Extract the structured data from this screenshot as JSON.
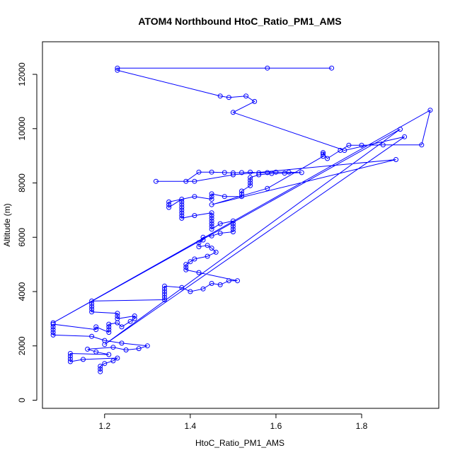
{
  "chart_data": {
    "type": "scatter",
    "title": "ATOM4 Northbound HtoC_Ratio_PM1_AMS",
    "xlabel": "HtoC_Ratio_PM1_AMS",
    "ylabel": "Altitude (m)",
    "xlim": [
      1.055,
      1.98
    ],
    "ylim": [
      -300,
      13200
    ],
    "xticks": [
      1.2,
      1.4,
      1.6,
      1.8
    ],
    "xtick_labels": [
      "1.2",
      "1.4",
      "1.6",
      "1.8"
    ],
    "yticks": [
      0,
      2000,
      4000,
      6000,
      8000,
      10000,
      12000
    ],
    "ytick_labels": [
      "0",
      "2000",
      "4000",
      "6000",
      "8000",
      "10000",
      "12000"
    ],
    "grid": false,
    "color": "#0000ff",
    "series": [
      {
        "name": "HtoC_Ratio_PM1_AMS",
        "mode": "lines+markers",
        "points": [
          [
            1.19,
            1050
          ],
          [
            1.19,
            1150
          ],
          [
            1.19,
            1250
          ],
          [
            1.2,
            1350
          ],
          [
            1.22,
            1450
          ],
          [
            1.23,
            1550
          ],
          [
            1.15,
            1500
          ],
          [
            1.12,
            1420
          ],
          [
            1.12,
            1520
          ],
          [
            1.12,
            1620
          ],
          [
            1.12,
            1720
          ],
          [
            1.21,
            1680
          ],
          [
            1.18,
            1780
          ],
          [
            1.16,
            1880
          ],
          [
            1.22,
            1950
          ],
          [
            1.25,
            1850
          ],
          [
            1.28,
            1900
          ],
          [
            1.3,
            2000
          ],
          [
            1.24,
            2100
          ],
          [
            1.2,
            2200
          ],
          [
            1.17,
            2350
          ],
          [
            1.08,
            2400
          ],
          [
            1.08,
            2500
          ],
          [
            1.08,
            2600
          ],
          [
            1.08,
            2700
          ],
          [
            1.08,
            2800
          ],
          [
            1.18,
            2600
          ],
          [
            1.18,
            2700
          ],
          [
            1.21,
            2500
          ],
          [
            1.21,
            2600
          ],
          [
            1.21,
            2700
          ],
          [
            1.21,
            2800
          ],
          [
            1.23,
            2850
          ],
          [
            1.24,
            2700
          ],
          [
            1.26,
            2900
          ],
          [
            1.27,
            3000
          ],
          [
            1.27,
            3100
          ],
          [
            1.23,
            3000
          ],
          [
            1.23,
            3100
          ],
          [
            1.23,
            3200
          ],
          [
            1.17,
            3250
          ],
          [
            1.17,
            3350
          ],
          [
            1.17,
            3450
          ],
          [
            1.17,
            3550
          ],
          [
            1.17,
            3650
          ],
          [
            1.34,
            3700
          ],
          [
            1.34,
            3800
          ],
          [
            1.34,
            3900
          ],
          [
            1.34,
            4000
          ],
          [
            1.34,
            4100
          ],
          [
            1.34,
            4200
          ],
          [
            1.38,
            4150
          ],
          [
            1.4,
            4000
          ],
          [
            1.43,
            4100
          ],
          [
            1.45,
            4300
          ],
          [
            1.47,
            4250
          ],
          [
            1.49,
            4400
          ],
          [
            1.51,
            4400
          ],
          [
            1.42,
            4700
          ],
          [
            1.39,
            4800
          ],
          [
            1.39,
            4900
          ],
          [
            1.39,
            5000
          ],
          [
            1.4,
            5100
          ],
          [
            1.41,
            5200
          ],
          [
            1.44,
            5300
          ],
          [
            1.46,
            5450
          ],
          [
            1.45,
            5600
          ],
          [
            1.44,
            5700
          ],
          [
            1.42,
            5650
          ],
          [
            1.42,
            5800
          ],
          [
            1.43,
            5900
          ],
          [
            1.43,
            6000
          ],
          [
            1.45,
            6050
          ],
          [
            1.47,
            6150
          ],
          [
            1.5,
            6200
          ],
          [
            1.5,
            6300
          ],
          [
            1.5,
            6400
          ],
          [
            1.5,
            6500
          ],
          [
            1.5,
            6600
          ],
          [
            1.47,
            6500
          ],
          [
            1.45,
            6300
          ],
          [
            1.45,
            6400
          ],
          [
            1.45,
            6500
          ],
          [
            1.45,
            6600
          ],
          [
            1.45,
            6700
          ],
          [
            1.45,
            6800
          ],
          [
            1.45,
            6900
          ],
          [
            1.41,
            6800
          ],
          [
            1.38,
            6700
          ],
          [
            1.38,
            6800
          ],
          [
            1.38,
            6900
          ],
          [
            1.38,
            7000
          ],
          [
            1.38,
            7100
          ],
          [
            1.38,
            7200
          ],
          [
            1.38,
            7300
          ],
          [
            1.38,
            7400
          ],
          [
            1.35,
            7100
          ],
          [
            1.35,
            7200
          ],
          [
            1.35,
            7300
          ],
          [
            1.41,
            7500
          ],
          [
            1.45,
            7400
          ],
          [
            1.45,
            7500
          ],
          [
            1.45,
            7600
          ],
          [
            1.48,
            7500
          ],
          [
            1.52,
            7500
          ],
          [
            1.52,
            7600
          ],
          [
            1.52,
            7700
          ],
          [
            1.54,
            7900
          ],
          [
            1.54,
            8000
          ],
          [
            1.54,
            8100
          ],
          [
            1.54,
            8200
          ],
          [
            1.56,
            8300
          ],
          [
            1.59,
            8350
          ],
          [
            1.62,
            8360
          ],
          [
            1.66,
            8380
          ],
          [
            1.63,
            8400
          ],
          [
            1.6,
            8400
          ],
          [
            1.58,
            8380
          ],
          [
            1.56,
            8370
          ],
          [
            1.54,
            8400
          ],
          [
            1.52,
            8380
          ],
          [
            1.5,
            8370
          ],
          [
            1.48,
            8380
          ],
          [
            1.45,
            8400
          ],
          [
            1.42,
            8400
          ],
          [
            1.39,
            8060
          ],
          [
            1.32,
            8060
          ],
          [
            1.41,
            8060
          ],
          [
            1.5,
            8300
          ],
          [
            1.88,
            8860
          ],
          [
            1.45,
            7200
          ],
          [
            1.58,
            7800
          ],
          [
            1.71,
            8980
          ],
          [
            1.71,
            9060
          ],
          [
            1.71,
            9120
          ],
          [
            1.72,
            8900
          ],
          [
            1.75,
            9200
          ],
          [
            1.77,
            9390
          ],
          [
            1.8,
            9390
          ],
          [
            1.85,
            9400
          ],
          [
            1.94,
            9400
          ],
          [
            1.96,
            10680
          ],
          [
            1.08,
            2850
          ],
          [
            1.89,
            9980
          ],
          [
            1.2,
            2050
          ],
          [
            1.9,
            9700
          ],
          [
            1.76,
            9200
          ],
          [
            1.5,
            10600
          ],
          [
            1.55,
            11000
          ],
          [
            1.53,
            11200
          ],
          [
            1.49,
            11150
          ],
          [
            1.47,
            11200
          ],
          [
            1.23,
            12150
          ],
          [
            1.23,
            12230
          ],
          [
            1.58,
            12230
          ],
          [
            1.73,
            12230
          ]
        ]
      }
    ]
  }
}
